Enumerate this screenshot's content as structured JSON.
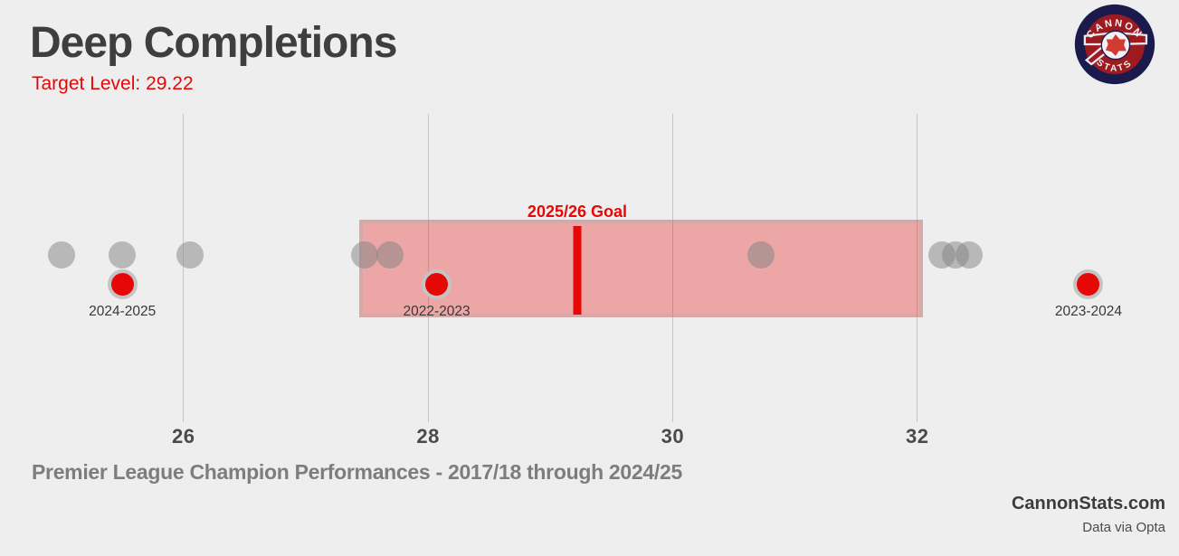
{
  "header": {
    "title": "Deep Completions",
    "target_label": "Target Level: 29.22"
  },
  "logo": {
    "top_text": "CANNON",
    "bottom_text": "STATS"
  },
  "footer": {
    "caption": "Premier League Champion Performances - 2017/18 through 2024/25",
    "brand": "CannonStats.com",
    "source": "Data via Opta"
  },
  "colors": {
    "background": "#efeeee",
    "accent_red": "#e60707",
    "title_gray": "#3e3e3e",
    "champion_dot_gray": "#b8b8b8",
    "band_pink": "#f0a8a8",
    "grid_gray": "#c6c6c6",
    "logo_navy": "#1a1a4d",
    "logo_dark_red": "#9d1b1f"
  },
  "chart_data": {
    "type": "scatter",
    "title": "Deep Completions",
    "target_level": 29.22,
    "xlim": [
      24.5,
      34.14
    ],
    "x_ticks": [
      "26",
      "28",
      "30",
      "32"
    ],
    "x_tick_values": [
      26,
      28,
      30,
      32
    ],
    "grid": true,
    "band": {
      "min": 27.47,
      "max": 32.02,
      "note": "shaded target range"
    },
    "goal": {
      "label": "2025/26 Goal",
      "value": 29.22
    },
    "series": [
      {
        "name": "Premier League Champions 2017/18-2024/25",
        "style": "gray-translucent",
        "values": [
          25.0,
          25.5,
          26.05,
          27.48,
          27.69,
          30.72,
          32.2,
          32.31,
          32.42
        ]
      },
      {
        "name": "Labeled seasons",
        "style": "red-ringed",
        "points": [
          {
            "label": "2024-2025",
            "value": 25.5
          },
          {
            "label": "2022-2023",
            "value": 28.07
          },
          {
            "label": "2023-2024",
            "value": 33.4
          }
        ]
      }
    ]
  }
}
